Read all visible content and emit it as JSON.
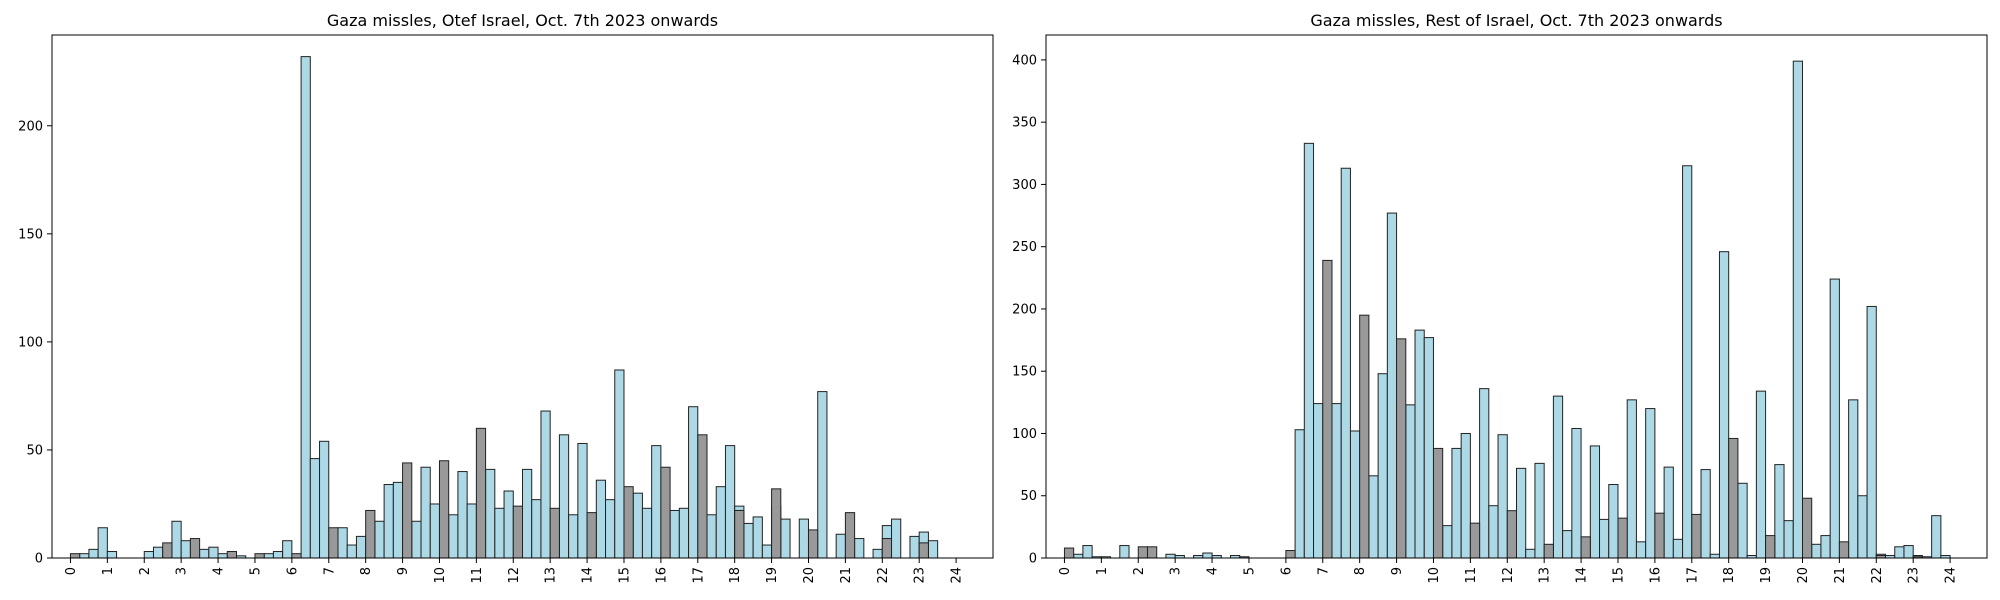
{
  "chart_data": [
    {
      "type": "bar",
      "title": "Gaza missles, Otef Israel, Oct. 7th 2023 onwards",
      "xlabel": "",
      "ylabel": "",
      "xlim": [
        -0.5,
        25
      ],
      "ylim": [
        0,
        242
      ],
      "xticks": [
        0,
        1,
        2,
        3,
        4,
        5,
        6,
        7,
        8,
        9,
        10,
        11,
        12,
        13,
        14,
        15,
        16,
        17,
        18,
        19,
        20,
        21,
        22,
        23,
        24
      ],
      "xtick_labels": [
        "0",
        "1",
        "2",
        "3",
        "4",
        "5",
        "6",
        "7",
        "8",
        "9",
        "10",
        "11",
        "12",
        "13",
        "14",
        "15",
        "16",
        "17",
        "18",
        "19",
        "20",
        "21",
        "22",
        "23",
        "24"
      ],
      "yticks": [
        0,
        50,
        100,
        150,
        200
      ],
      "ytick_labels": [
        "0",
        "50",
        "100",
        "150",
        "200"
      ],
      "bin_width": 0.25,
      "grid": false,
      "legend": "none",
      "series": [
        {
          "color": "#add8e6",
          "bins": [
            [
              0.25,
              2
            ],
            [
              0.5,
              4
            ],
            [
              0.75,
              14
            ],
            [
              1.0,
              3
            ],
            [
              2.0,
              3
            ],
            [
              2.25,
              5
            ],
            [
              2.75,
              17
            ],
            [
              3.0,
              8
            ],
            [
              3.5,
              4
            ],
            [
              3.75,
              5
            ],
            [
              4.0,
              2
            ],
            [
              4.5,
              1
            ],
            [
              5.25,
              2
            ],
            [
              5.5,
              3
            ],
            [
              5.75,
              8
            ],
            [
              6.25,
              232
            ],
            [
              6.5,
              46
            ],
            [
              6.75,
              54
            ],
            [
              7.25,
              14
            ],
            [
              7.5,
              6
            ],
            [
              7.75,
              10
            ],
            [
              8.25,
              17
            ],
            [
              8.5,
              34
            ],
            [
              8.75,
              35
            ],
            [
              9.25,
              17
            ],
            [
              9.5,
              42
            ],
            [
              9.75,
              25
            ],
            [
              10.25,
              20
            ],
            [
              10.5,
              40
            ],
            [
              10.75,
              25
            ],
            [
              11.25,
              41
            ],
            [
              11.5,
              23
            ],
            [
              11.75,
              31
            ],
            [
              12.25,
              41
            ],
            [
              12.5,
              27
            ],
            [
              12.75,
              68
            ],
            [
              13.25,
              57
            ],
            [
              13.5,
              20
            ],
            [
              13.75,
              53
            ],
            [
              14.25,
              36
            ],
            [
              14.5,
              27
            ],
            [
              14.75,
              87
            ],
            [
              15.25,
              30
            ],
            [
              15.5,
              23
            ],
            [
              15.75,
              52
            ],
            [
              16.25,
              22
            ],
            [
              16.5,
              23
            ],
            [
              16.75,
              70
            ],
            [
              17.25,
              20
            ],
            [
              17.5,
              33
            ],
            [
              17.75,
              52
            ],
            [
              18.0,
              24
            ],
            [
              18.25,
              16
            ],
            [
              18.5,
              19
            ],
            [
              18.75,
              6
            ],
            [
              19.0,
              24
            ],
            [
              19.25,
              18
            ],
            [
              19.75,
              18
            ],
            [
              20.0,
              7
            ],
            [
              20.25,
              77
            ],
            [
              20.75,
              11
            ],
            [
              21.0,
              1
            ],
            [
              21.25,
              9
            ],
            [
              21.75,
              4
            ],
            [
              22.0,
              15
            ],
            [
              22.25,
              18
            ],
            [
              22.75,
              10
            ],
            [
              23.0,
              12
            ],
            [
              23.25,
              8
            ]
          ]
        },
        {
          "color": "#999999",
          "bins": [
            [
              0.0,
              2
            ],
            [
              2.5,
              7
            ],
            [
              3.25,
              9
            ],
            [
              4.25,
              3
            ],
            [
              5.0,
              2
            ],
            [
              6.0,
              2
            ],
            [
              7.0,
              14
            ],
            [
              8.0,
              22
            ],
            [
              9.0,
              44
            ],
            [
              10.0,
              45
            ],
            [
              11.0,
              60
            ],
            [
              12.0,
              24
            ],
            [
              13.0,
              23
            ],
            [
              14.0,
              21
            ],
            [
              15.0,
              33
            ],
            [
              16.0,
              42
            ],
            [
              17.0,
              57
            ],
            [
              18.0,
              22
            ],
            [
              19.0,
              32
            ],
            [
              20.0,
              13
            ],
            [
              21.0,
              21
            ],
            [
              22.0,
              9
            ],
            [
              23.0,
              7
            ]
          ]
        }
      ]
    },
    {
      "type": "bar",
      "title": "Gaza missles, Rest of Israel, Oct. 7th 2023 onwards",
      "xlabel": "",
      "ylabel": "",
      "xlim": [
        -0.5,
        25
      ],
      "ylim": [
        0,
        420
      ],
      "xticks": [
        0,
        1,
        2,
        3,
        4,
        5,
        6,
        7,
        8,
        9,
        10,
        11,
        12,
        13,
        14,
        15,
        16,
        17,
        18,
        19,
        20,
        21,
        22,
        23,
        24
      ],
      "xtick_labels": [
        "0",
        "1",
        "2",
        "3",
        "4",
        "5",
        "6",
        "7",
        "8",
        "9",
        "10",
        "11",
        "12",
        "13",
        "14",
        "15",
        "16",
        "17",
        "18",
        "19",
        "20",
        "21",
        "22",
        "23",
        "24"
      ],
      "yticks": [
        0,
        50,
        100,
        150,
        200,
        250,
        300,
        350,
        400
      ],
      "ytick_labels": [
        "0",
        "50",
        "100",
        "150",
        "200",
        "250",
        "300",
        "350",
        "400"
      ],
      "bin_width": 0.25,
      "grid": false,
      "legend": "none",
      "series": [
        {
          "color": "#add8e6",
          "bins": [
            [
              0.25,
              3
            ],
            [
              0.5,
              10
            ],
            [
              0.75,
              1
            ],
            [
              1.0,
              1
            ],
            [
              1.5,
              10
            ],
            [
              2.75,
              3
            ],
            [
              3.0,
              2
            ],
            [
              3.5,
              2
            ],
            [
              3.75,
              4
            ],
            [
              4.0,
              2
            ],
            [
              4.5,
              2
            ],
            [
              6.25,
              103
            ],
            [
              6.5,
              333
            ],
            [
              6.75,
              124
            ],
            [
              7.25,
              124
            ],
            [
              7.5,
              313
            ],
            [
              7.75,
              102
            ],
            [
              8.25,
              66
            ],
            [
              8.5,
              148
            ],
            [
              8.75,
              277
            ],
            [
              9.25,
              123
            ],
            [
              9.5,
              183
            ],
            [
              9.75,
              177
            ],
            [
              10.25,
              26
            ],
            [
              10.5,
              88
            ],
            [
              10.75,
              100
            ],
            [
              11.25,
              136
            ],
            [
              11.5,
              42
            ],
            [
              11.75,
              99
            ],
            [
              12.25,
              72
            ],
            [
              12.5,
              7
            ],
            [
              12.75,
              76
            ],
            [
              13.25,
              130
            ],
            [
              13.5,
              22
            ],
            [
              13.75,
              104
            ],
            [
              14.25,
              90
            ],
            [
              14.5,
              31
            ],
            [
              14.75,
              59
            ],
            [
              15.25,
              127
            ],
            [
              15.5,
              13
            ],
            [
              15.75,
              120
            ],
            [
              16.25,
              73
            ],
            [
              16.5,
              15
            ],
            [
              16.75,
              315
            ],
            [
              17.25,
              71
            ],
            [
              17.5,
              3
            ],
            [
              17.75,
              246
            ],
            [
              18.25,
              60
            ],
            [
              18.5,
              2
            ],
            [
              18.75,
              134
            ],
            [
              19.25,
              75
            ],
            [
              19.5,
              30
            ],
            [
              19.75,
              399
            ],
            [
              20.25,
              11
            ],
            [
              20.5,
              18
            ],
            [
              20.75,
              224
            ],
            [
              21.25,
              127
            ],
            [
              21.5,
              50
            ],
            [
              21.75,
              202
            ],
            [
              22.0,
              3
            ],
            [
              22.25,
              2
            ],
            [
              22.5,
              9
            ],
            [
              22.75,
              10
            ],
            [
              23.0,
              2
            ],
            [
              23.25,
              1
            ],
            [
              23.5,
              34
            ],
            [
              23.75,
              2
            ]
          ]
        },
        {
          "color": "#999999",
          "bins": [
            [
              0.0,
              8
            ],
            [
              2.0,
              9
            ],
            [
              2.25,
              9
            ],
            [
              4.75,
              1
            ],
            [
              6.0,
              6
            ],
            [
              7.0,
              239
            ],
            [
              8.0,
              195
            ],
            [
              9.0,
              176
            ],
            [
              10.0,
              88
            ],
            [
              11.0,
              28
            ],
            [
              12.0,
              38
            ],
            [
              13.0,
              11
            ],
            [
              14.0,
              17
            ],
            [
              15.0,
              32
            ],
            [
              16.0,
              36
            ],
            [
              17.0,
              35
            ],
            [
              18.0,
              96
            ],
            [
              19.0,
              18
            ],
            [
              20.0,
              48
            ],
            [
              21.0,
              13
            ],
            [
              22.0,
              2
            ],
            [
              23.0,
              1
            ]
          ]
        }
      ]
    }
  ]
}
